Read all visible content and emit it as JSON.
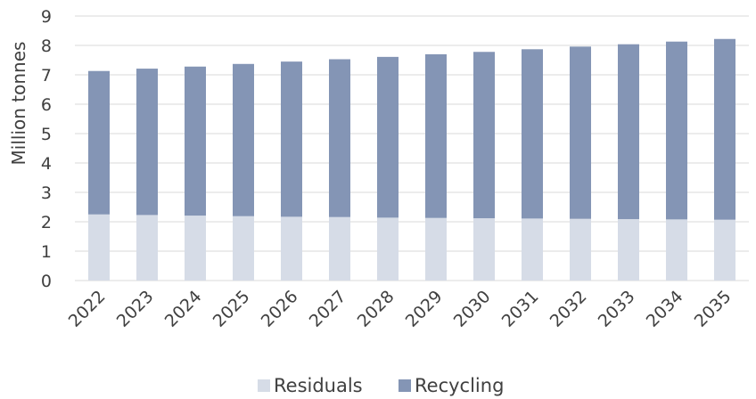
{
  "chart_data": {
    "type": "bar",
    "stacked": true,
    "title": "",
    "xlabel": "",
    "ylabel": "Million tonnes",
    "ylim": [
      0,
      9
    ],
    "yticks": [
      "0",
      "1",
      "2",
      "3",
      "4",
      "5",
      "6",
      "7",
      "8",
      "9"
    ],
    "grid": true,
    "legend_position": "bottom",
    "categories": [
      "2022",
      "2023",
      "2024",
      "2025",
      "2026",
      "2027",
      "2028",
      "2029",
      "2030",
      "2031",
      "2032",
      "2033",
      "2034",
      "2035"
    ],
    "series": [
      {
        "name": "Residuals",
        "color": "#d6dce7",
        "values": [
          2.25,
          2.23,
          2.21,
          2.19,
          2.17,
          2.16,
          2.14,
          2.13,
          2.12,
          2.11,
          2.1,
          2.09,
          2.08,
          2.07
        ]
      },
      {
        "name": "Recycling",
        "color": "#8495b5",
        "values": [
          4.88,
          4.98,
          5.07,
          5.18,
          5.28,
          5.37,
          5.47,
          5.57,
          5.66,
          5.76,
          5.86,
          5.95,
          6.05,
          6.15
        ]
      }
    ]
  }
}
